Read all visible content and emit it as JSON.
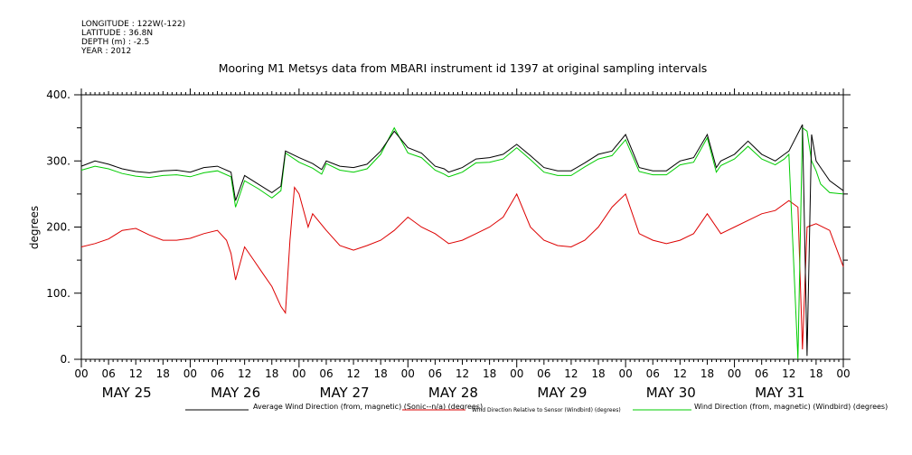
{
  "meta": {
    "longitude": "LONGITUDE : 122W(-122)",
    "latitude": "LATITUDE : 36.8N",
    "depth": "DEPTH (m) : -2.5",
    "year": "YEAR : 2012"
  },
  "chart_data": {
    "type": "line",
    "title": "Mooring M1 Metsys data from MBARI instrument id 1397 at original sampling intervals",
    "ylabel": "degrees",
    "xlabel": "",
    "ylim": [
      0,
      400
    ],
    "yticks": [
      0,
      100,
      200,
      300,
      400
    ],
    "ytick_labels": [
      "0.",
      "100.",
      "200.",
      "300.",
      "400."
    ],
    "x_hour_labels": [
      "00",
      "06",
      "12",
      "18",
      "00",
      "06",
      "12",
      "18",
      "00",
      "06",
      "12",
      "18",
      "00",
      "06",
      "12",
      "18",
      "00",
      "06",
      "12",
      "18",
      "00",
      "06",
      "12",
      "18",
      "00",
      "06",
      "12",
      "18",
      "00"
    ],
    "x_day_labels": [
      "MAY 25",
      "MAY 26",
      "MAY 27",
      "MAY 28",
      "MAY 29",
      "MAY 30",
      "MAY 31"
    ],
    "x_range_hours": [
      0,
      168
    ],
    "grid": false,
    "legend_position": "bottom",
    "series": [
      {
        "name": "Average Wind Direction (from, magnetic) (Sonic--n/a) (degrees)",
        "color": "#000000",
        "x": [
          0,
          3,
          6,
          9,
          12,
          15,
          18,
          21,
          24,
          27,
          30,
          33,
          34,
          36,
          39,
          42,
          44,
          45,
          48,
          51,
          53,
          54,
          57,
          60,
          63,
          66,
          69,
          72,
          75,
          78,
          80,
          81,
          84,
          87,
          90,
          93,
          96,
          99,
          102,
          105,
          108,
          111,
          114,
          117,
          120,
          123,
          126,
          129,
          132,
          135,
          138,
          140,
          141,
          144,
          147,
          150,
          153,
          155,
          156,
          159,
          160,
          161,
          162,
          163,
          165,
          168
        ],
        "y": [
          292,
          300,
          295,
          288,
          284,
          282,
          285,
          286,
          283,
          290,
          292,
          283,
          240,
          278,
          265,
          252,
          262,
          315,
          305,
          296,
          287,
          300,
          292,
          290,
          295,
          315,
          345,
          320,
          312,
          292,
          288,
          283,
          290,
          303,
          305,
          310,
          325,
          308,
          290,
          285,
          285,
          297,
          310,
          315,
          340,
          290,
          285,
          285,
          300,
          305,
          340,
          290,
          300,
          310,
          330,
          310,
          300,
          310,
          315,
          355,
          5,
          340,
          300,
          290,
          270,
          255
        ]
      },
      {
        "name": "Wind Direction Relative to Sensor (Windbird) (degrees)",
        "color": "#dd0000",
        "x": [
          0,
          3,
          6,
          9,
          12,
          15,
          18,
          21,
          24,
          27,
          30,
          32,
          33,
          34,
          36,
          38,
          40,
          42,
          44,
          45,
          46,
          47,
          48,
          50,
          51,
          54,
          57,
          60,
          63,
          66,
          69,
          72,
          75,
          78,
          80,
          81,
          84,
          87,
          90,
          93,
          96,
          99,
          102,
          105,
          108,
          111,
          114,
          117,
          120,
          123,
          126,
          129,
          132,
          135,
          138,
          141,
          144,
          147,
          150,
          153,
          156,
          158,
          159,
          160,
          162,
          165,
          168
        ],
        "y": [
          170,
          175,
          182,
          195,
          198,
          188,
          180,
          180,
          183,
          190,
          195,
          180,
          160,
          120,
          170,
          150,
          130,
          110,
          80,
          70,
          180,
          260,
          250,
          200,
          220,
          195,
          172,
          165,
          172,
          180,
          195,
          215,
          200,
          190,
          180,
          175,
          180,
          190,
          200,
          215,
          250,
          200,
          180,
          172,
          170,
          180,
          200,
          230,
          250,
          190,
          180,
          175,
          180,
          190,
          220,
          190,
          200,
          210,
          220,
          225,
          240,
          230,
          15,
          200,
          205,
          195,
          140
        ]
      },
      {
        "name": "Wind Direction (from, magnetic) (Windbird) (degrees)",
        "color": "#00cc00",
        "x": [
          0,
          3,
          6,
          9,
          12,
          15,
          18,
          21,
          24,
          27,
          30,
          33,
          34,
          36,
          39,
          42,
          44,
          45,
          48,
          51,
          53,
          54,
          57,
          60,
          63,
          66,
          69,
          72,
          75,
          78,
          80,
          81,
          84,
          87,
          90,
          93,
          96,
          99,
          102,
          105,
          108,
          111,
          114,
          117,
          120,
          123,
          126,
          129,
          132,
          135,
          138,
          140,
          141,
          144,
          147,
          150,
          153,
          155,
          156,
          158,
          159,
          160,
          161,
          162,
          163,
          165,
          168
        ],
        "y": [
          286,
          292,
          288,
          281,
          277,
          275,
          278,
          279,
          276,
          282,
          285,
          276,
          230,
          270,
          258,
          244,
          255,
          312,
          298,
          289,
          280,
          296,
          286,
          283,
          288,
          310,
          350,
          312,
          305,
          286,
          280,
          276,
          283,
          297,
          298,
          303,
          320,
          302,
          283,
          278,
          278,
          291,
          303,
          308,
          332,
          284,
          279,
          279,
          294,
          298,
          335,
          283,
          293,
          303,
          322,
          303,
          294,
          303,
          310,
          0,
          350,
          345,
          300,
          285,
          265,
          252,
          250
        ]
      }
    ]
  }
}
